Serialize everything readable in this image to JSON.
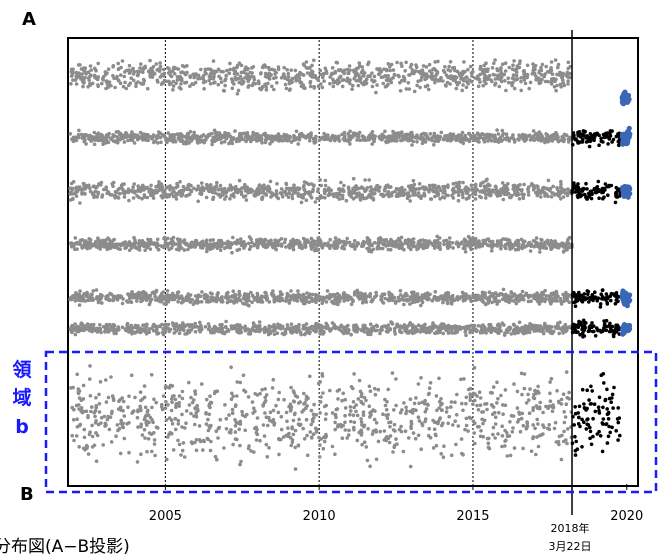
{
  "chart_data": {
    "type": "scatter",
    "title": "",
    "xlabel": "",
    "ylabel": "",
    "projection_end_top": "A",
    "projection_end_bottom": "B",
    "xlim": [
      2001.9,
      2020.3
    ],
    "x_ticks": [
      {
        "value": 2005,
        "label": "2005"
      },
      {
        "value": 2010,
        "label": "2010"
      },
      {
        "value": 2015,
        "label": "2015"
      },
      {
        "value": 2020,
        "label": "2020"
      }
    ],
    "ylim": [
      0,
      1
    ],
    "grid": "vertical dotted at 2005, 2010, 2015",
    "event_marker": {
      "value": 2018.22,
      "label_line1": "2018年",
      "label_line2": "3月22日"
    },
    "region": {
      "label_chars": [
        "領",
        "域",
        "b"
      ],
      "y_range": [
        0,
        0.31
      ],
      "color": "#1a1aff"
    },
    "caption": "分布図(A−B投影)",
    "series": [
      {
        "color": "#8c8c8c",
        "x_range": [
          2001.9,
          2018.22
        ],
        "bands": [
          {
            "y": 0.92,
            "spread": 0.045
          },
          {
            "y": 0.78,
            "spread": 0.018
          },
          {
            "y": 0.66,
            "spread": 0.03
          },
          {
            "y": 0.54,
            "spread": 0.02
          },
          {
            "y": 0.42,
            "spread": 0.02
          },
          {
            "y": 0.35,
            "spread": 0.018
          },
          {
            "y": 0.15,
            "spread": 0.13
          }
        ]
      },
      {
        "color": "#000000",
        "x_range": [
          2018.22,
          2019.8
        ],
        "bands": [
          {
            "y": 0.78,
            "spread": 0.025
          },
          {
            "y": 0.66,
            "spread": 0.03
          },
          {
            "y": 0.42,
            "spread": 0.025
          },
          {
            "y": 0.35,
            "spread": 0.025
          },
          {
            "y": 0.15,
            "spread": 0.13
          }
        ]
      },
      {
        "color": "#3a67b6",
        "x_range": [
          2019.85,
          2020.1
        ],
        "bands": [
          {
            "y": 0.87,
            "spread": 0.02
          },
          {
            "y": 0.78,
            "spread": 0.025
          },
          {
            "y": 0.66,
            "spread": 0.02
          },
          {
            "y": 0.42,
            "spread": 0.02
          },
          {
            "y": 0.35,
            "spread": 0.015
          }
        ]
      }
    ]
  }
}
